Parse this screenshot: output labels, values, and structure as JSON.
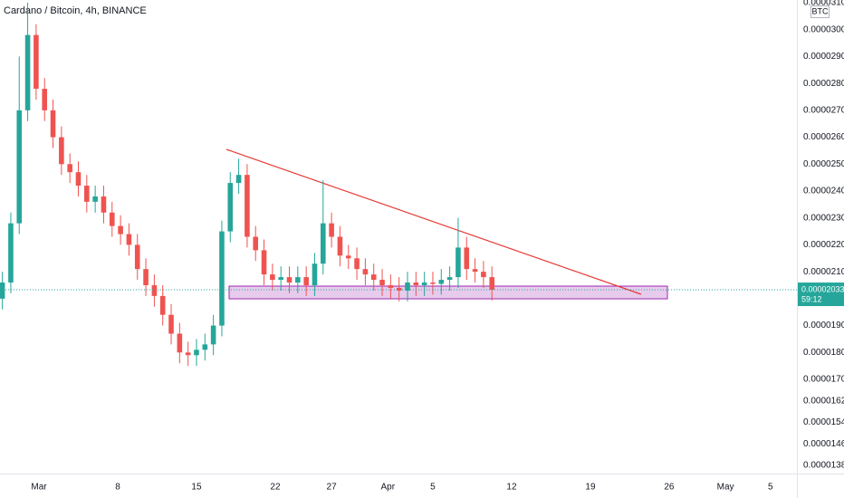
{
  "chart_data": {
    "type": "candlestick",
    "title": "Cardano / Bitcoin, 4h, BINANCE",
    "currency": "BTC",
    "up_color": "#26a69a",
    "down_color": "#ef5350",
    "x": [
      -3.25,
      -2.5,
      -1.75,
      -1,
      -0.25,
      0.5,
      1.25,
      2,
      2.75,
      3.5,
      4.25,
      5,
      5.75,
      6.5,
      7.25,
      8,
      8.75,
      9.5,
      10.25,
      11,
      11.75,
      12.5,
      13.25,
      14,
      14.75,
      15.5,
      16.25,
      17,
      17.75,
      18.5,
      19.25,
      20,
      20.75,
      21.5,
      22.25,
      23,
      23.75,
      24.5,
      25.25,
      26,
      26.75,
      27.5,
      28.25,
      29,
      29.75,
      30.5,
      31.25,
      32,
      32.75,
      33.5,
      34.25,
      35,
      35.75,
      36.5,
      37.25,
      38,
      38.75,
      39.5,
      40.25
    ],
    "open": [
      2e-05,
      2.06e-05,
      2.28e-05,
      2.7e-05,
      2.98e-05,
      2.78e-05,
      2.7e-05,
      2.6e-05,
      2.5e-05,
      2.47e-05,
      2.42e-05,
      2.36e-05,
      2.38e-05,
      2.32e-05,
      2.27e-05,
      2.24e-05,
      2.2e-05,
      2.11e-05,
      2.05e-05,
      2.01e-05,
      1.94e-05,
      1.87e-05,
      1.8e-05,
      1.79e-05,
      1.81e-05,
      1.83e-05,
      1.9e-05,
      2.25e-05,
      2.43e-05,
      2.46e-05,
      2.23e-05,
      2.18e-05,
      2.09e-05,
      2.07e-05,
      2.08e-05,
      2.06e-05,
      2.08e-05,
      2.05e-05,
      2.13e-05,
      2.28e-05,
      2.23e-05,
      2.16e-05,
      2.15e-05,
      2.11e-05,
      2.09e-05,
      2.07e-05,
      2.05e-05,
      2.04e-05,
      2.03e-05,
      2.06e-05,
      2.05e-05,
      2.06e-05,
      2.055e-05,
      2.07e-05,
      2.08e-05,
      2.19e-05,
      2.11e-05,
      2.1e-05,
      2.08e-05
    ],
    "high": [
      2.1e-05,
      2.32e-05,
      2.9e-05,
      3.1e-05,
      3.02e-05,
      2.82e-05,
      2.74e-05,
      2.64e-05,
      2.54e-05,
      2.51e-05,
      2.46e-05,
      2.42e-05,
      2.42e-05,
      2.36e-05,
      2.31e-05,
      2.28e-05,
      2.24e-05,
      2.15e-05,
      2.09e-05,
      2.05e-05,
      1.98e-05,
      1.91e-05,
      1.84e-05,
      1.85e-05,
      1.87e-05,
      1.94e-05,
      2.29e-05,
      2.47e-05,
      2.52e-05,
      2.5e-05,
      2.27e-05,
      2.22e-05,
      2.13e-05,
      2.12e-05,
      2.12e-05,
      2.12e-05,
      2.12e-05,
      2.17e-05,
      2.44e-05,
      2.32e-05,
      2.27e-05,
      2.2e-05,
      2.19e-05,
      2.15e-05,
      2.13e-05,
      2.11e-05,
      2.09e-05,
      2.08e-05,
      2.1e-05,
      2.1e-05,
      2.1e-05,
      2.1e-05,
      2.11e-05,
      2.12e-05,
      2.3e-05,
      2.23e-05,
      2.15e-05,
      2.14e-05,
      2.12e-05
    ],
    "low": [
      1.96e-05,
      2.02e-05,
      2.24e-05,
      2.66e-05,
      2.74e-05,
      2.66e-05,
      2.56e-05,
      2.46e-05,
      2.43e-05,
      2.38e-05,
      2.32e-05,
      2.32e-05,
      2.28e-05,
      2.23e-05,
      2.2e-05,
      2.16e-05,
      2.07e-05,
      2.01e-05,
      1.97e-05,
      1.9e-05,
      1.83e-05,
      1.76e-05,
      1.75e-05,
      1.75e-05,
      1.77e-05,
      1.79e-05,
      1.86e-05,
      2.21e-05,
      2.39e-05,
      2.19e-05,
      2.14e-05,
      2.05e-05,
      2.03e-05,
      2.03e-05,
      2.02e-05,
      2.02e-05,
      2.01e-05,
      2.01e-05,
      2.09e-05,
      2.19e-05,
      2.12e-05,
      2.11e-05,
      2.07e-05,
      2.05e-05,
      2.03e-05,
      2.01e-05,
      2e-05,
      1.99e-05,
      1.99e-05,
      2.01e-05,
      2.01e-05,
      2.015e-05,
      2.015e-05,
      2.03e-05,
      2.04e-05,
      2.07e-05,
      2.06e-05,
      2.04e-05,
      1.993e-05
    ],
    "close": [
      2.06e-05,
      2.28e-05,
      2.7e-05,
      2.98e-05,
      2.78e-05,
      2.7e-05,
      2.6e-05,
      2.5e-05,
      2.47e-05,
      2.42e-05,
      2.36e-05,
      2.38e-05,
      2.32e-05,
      2.27e-05,
      2.24e-05,
      2.2e-05,
      2.11e-05,
      2.05e-05,
      2.01e-05,
      1.94e-05,
      1.87e-05,
      1.8e-05,
      1.79e-05,
      1.81e-05,
      1.83e-05,
      1.9e-05,
      2.25e-05,
      2.43e-05,
      2.46e-05,
      2.23e-05,
      2.18e-05,
      2.09e-05,
      2.07e-05,
      2.08e-05,
      2.06e-05,
      2.08e-05,
      2.05e-05,
      2.13e-05,
      2.28e-05,
      2.23e-05,
      2.16e-05,
      2.15e-05,
      2.11e-05,
      2.09e-05,
      2.07e-05,
      2.05e-05,
      2.04e-05,
      2.03e-05,
      2.06e-05,
      2.05e-05,
      2.06e-05,
      2.055e-05,
      2.07e-05,
      2.08e-05,
      2.19e-05,
      2.11e-05,
      2.1e-05,
      2.08e-05,
      2.033e-05
    ],
    "last_price": 2.033e-05,
    "countdown": "59:12",
    "xlim": [
      -3.46,
      67.35
    ],
    "xticks": [
      {
        "value": 0,
        "label": "Mar"
      },
      {
        "value": 7,
        "label": "8"
      },
      {
        "value": 14,
        "label": "15"
      },
      {
        "value": 21,
        "label": "22"
      },
      {
        "value": 26,
        "label": "27"
      },
      {
        "value": 31,
        "label": "Apr"
      },
      {
        "value": 35,
        "label": "5"
      },
      {
        "value": 42,
        "label": "12"
      },
      {
        "value": 49,
        "label": "19"
      },
      {
        "value": 56,
        "label": "26"
      },
      {
        "value": 61,
        "label": "May"
      },
      {
        "value": 65,
        "label": "5"
      }
    ],
    "ylim": [
      1.35e-05,
      3.11e-05
    ],
    "yticks": [
      {
        "value": 3.1e-05,
        "label": "0.00003100"
      },
      {
        "value": 3e-05,
        "label": "0.00003000"
      },
      {
        "value": 2.9e-05,
        "label": "0.00002900"
      },
      {
        "value": 2.8e-05,
        "label": "0.00002800"
      },
      {
        "value": 2.7e-05,
        "label": "0.00002700"
      },
      {
        "value": 2.6e-05,
        "label": "0.00002600"
      },
      {
        "value": 2.5e-05,
        "label": "0.00002500"
      },
      {
        "value": 2.4e-05,
        "label": "0.00002400"
      },
      {
        "value": 2.3e-05,
        "label": "0.00002300"
      },
      {
        "value": 2.2e-05,
        "label": "0.00002200"
      },
      {
        "value": 2.1e-05,
        "label": "0.00002100"
      },
      {
        "value": 1.9e-05,
        "label": "0.00001900"
      },
      {
        "value": 1.8e-05,
        "label": "0.00001800"
      },
      {
        "value": 1.7e-05,
        "label": "0.00001700"
      },
      {
        "value": 1.62e-05,
        "label": "0.00001620"
      },
      {
        "value": 1.54e-05,
        "label": "0.00001540"
      },
      {
        "value": 1.46e-05,
        "label": "0.00001460"
      },
      {
        "value": 1.38e-05,
        "label": "0.00001380"
      }
    ],
    "grid": false
  }
}
